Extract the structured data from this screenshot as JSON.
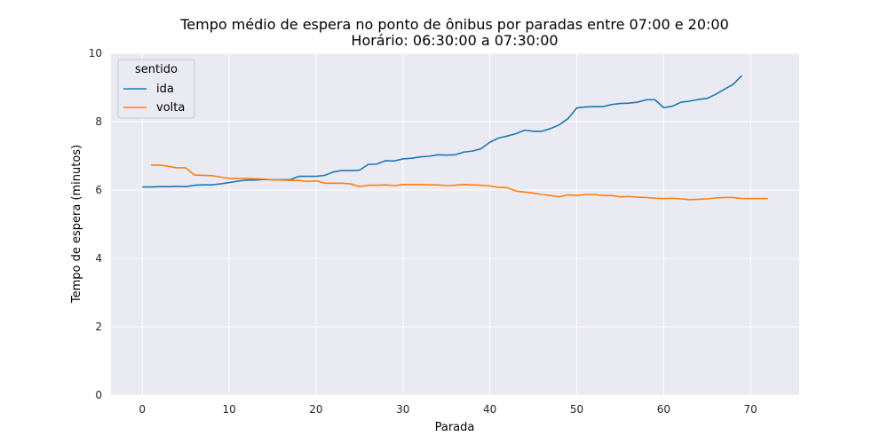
{
  "chart_data": {
    "type": "line",
    "title": "Tempo médio de espera no ponto de ônibus por paradas entre 07:00 e 20:00",
    "subtitle": "Horário: 06:30:00 a 07:30:00",
    "xlabel": "Parada",
    "ylabel": "Tempo de espera (minutos)",
    "xlim": [
      -3.6,
      75.6
    ],
    "ylim": [
      0,
      10
    ],
    "xticks": [
      0,
      10,
      20,
      30,
      40,
      50,
      60,
      70
    ],
    "yticks": [
      0,
      2,
      4,
      6,
      8,
      10
    ],
    "grid": true,
    "legend": {
      "title": "sentido",
      "placement": "top-left"
    },
    "series": [
      {
        "name": "ida",
        "color": "#1f77b4",
        "x": [
          0,
          1,
          2,
          3,
          4,
          5,
          6,
          7,
          8,
          9,
          10,
          11,
          12,
          13,
          14,
          15,
          16,
          17,
          18,
          19,
          20,
          21,
          22,
          23,
          24,
          25,
          26,
          27,
          28,
          29,
          30,
          31,
          32,
          33,
          34,
          35,
          36,
          37,
          38,
          39,
          40,
          41,
          42,
          43,
          44,
          45,
          46,
          47,
          48,
          49,
          50,
          51,
          52,
          53,
          54,
          55,
          56,
          57,
          58,
          59,
          60,
          61,
          62,
          63,
          64,
          65,
          66,
          67,
          68,
          69
        ],
        "values": [
          6.09,
          6.09,
          6.1,
          6.1,
          6.11,
          6.1,
          6.14,
          6.15,
          6.15,
          6.18,
          6.22,
          6.26,
          6.29,
          6.29,
          6.31,
          6.3,
          6.3,
          6.3,
          6.4,
          6.4,
          6.4,
          6.43,
          6.53,
          6.57,
          6.57,
          6.58,
          6.75,
          6.76,
          6.86,
          6.85,
          6.91,
          6.93,
          6.97,
          6.99,
          7.03,
          7.02,
          7.03,
          7.11,
          7.14,
          7.21,
          7.4,
          7.52,
          7.58,
          7.65,
          7.75,
          7.72,
          7.72,
          7.8,
          7.91,
          8.09,
          8.4,
          8.43,
          8.44,
          8.44,
          8.5,
          8.53,
          8.54,
          8.57,
          8.64,
          8.64,
          8.41,
          8.45,
          8.57,
          8.6,
          8.65,
          8.68,
          8.8,
          8.95,
          9.09,
          9.35
        ]
      },
      {
        "name": "volta",
        "color": "#ff7f0e",
        "x": [
          1,
          2,
          3,
          4,
          5,
          6,
          7,
          8,
          9,
          10,
          11,
          12,
          13,
          14,
          15,
          16,
          17,
          18,
          19,
          20,
          21,
          22,
          23,
          24,
          25,
          26,
          27,
          28,
          29,
          30,
          31,
          32,
          33,
          34,
          35,
          36,
          37,
          38,
          39,
          40,
          41,
          42,
          43,
          44,
          45,
          46,
          47,
          48,
          49,
          50,
          51,
          52,
          53,
          54,
          55,
          56,
          57,
          58,
          59,
          60,
          61,
          62,
          63,
          64,
          65,
          66,
          67,
          68,
          69,
          70,
          71,
          72
        ],
        "values": [
          6.73,
          6.73,
          6.69,
          6.65,
          6.65,
          6.44,
          6.43,
          6.42,
          6.38,
          6.34,
          6.34,
          6.34,
          6.33,
          6.32,
          6.3,
          6.29,
          6.28,
          6.28,
          6.25,
          6.27,
          6.2,
          6.2,
          6.2,
          6.18,
          6.1,
          6.14,
          6.14,
          6.15,
          6.13,
          6.16,
          6.16,
          6.16,
          6.15,
          6.15,
          6.13,
          6.14,
          6.16,
          6.15,
          6.14,
          6.12,
          6.08,
          6.07,
          5.97,
          5.94,
          5.91,
          5.87,
          5.84,
          5.8,
          5.86,
          5.84,
          5.87,
          5.87,
          5.84,
          5.84,
          5.8,
          5.81,
          5.79,
          5.78,
          5.76,
          5.75,
          5.76,
          5.74,
          5.72,
          5.73,
          5.74,
          5.77,
          5.78,
          5.78,
          5.75,
          5.75,
          5.75,
          5.75
        ]
      }
    ]
  }
}
